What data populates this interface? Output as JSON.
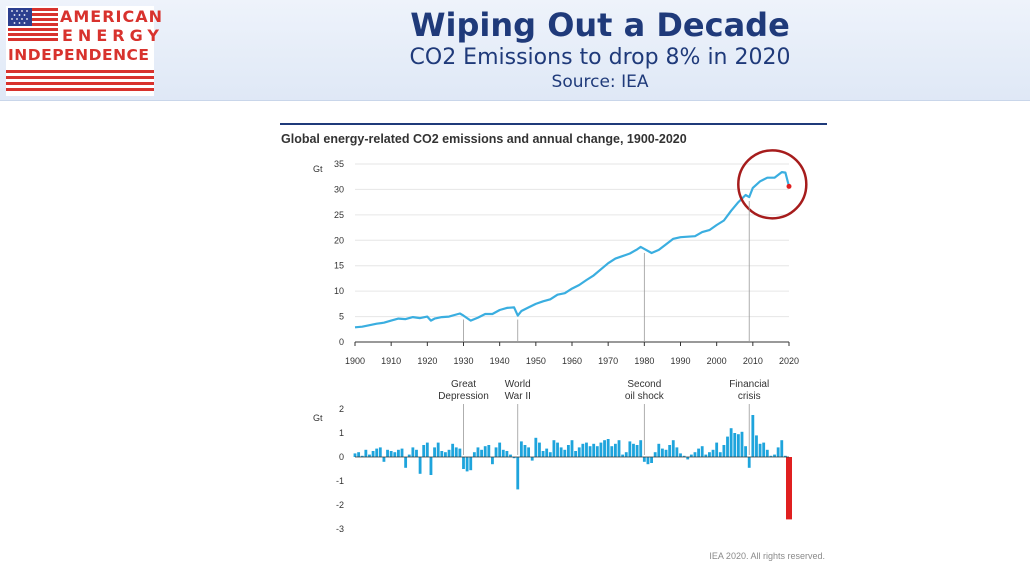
{
  "header": {
    "logo": {
      "line1": "AMERICAN",
      "line2": "ENERGY",
      "line3": "INDEPENDENCE"
    },
    "title": "Wiping Out a Decade",
    "subtitle": "CO2 Emissions to drop 8% in 2020",
    "source": "Source: IEA"
  },
  "colors": {
    "title": "#1f3a7a",
    "line": "#3aaee0",
    "bar": "#1ea4dc",
    "bar_2020": "#e02020",
    "circle": "#a61c1c",
    "logo_red": "#d8322d"
  },
  "chart_data": [
    {
      "type": "line",
      "title": "Global energy-related CO2 emissions and annual change, 1900-2020",
      "ylabel": "Gt",
      "xlim": [
        1900,
        2020
      ],
      "ylim": [
        0,
        35
      ],
      "yticks": [
        0,
        5,
        10,
        15,
        20,
        25,
        30,
        35
      ],
      "xticks": [
        1900,
        1910,
        1920,
        1930,
        1940,
        1950,
        1960,
        1970,
        1980,
        1990,
        2000,
        2010,
        2020
      ],
      "grid": true,
      "x": [
        1900,
        1902,
        1904,
        1906,
        1908,
        1910,
        1912,
        1914,
        1916,
        1918,
        1920,
        1921,
        1922,
        1924,
        1926,
        1928,
        1929,
        1930,
        1932,
        1934,
        1936,
        1938,
        1940,
        1942,
        1944,
        1945,
        1946,
        1948,
        1950,
        1952,
        1954,
        1956,
        1958,
        1960,
        1962,
        1964,
        1966,
        1968,
        1970,
        1972,
        1974,
        1976,
        1978,
        1979,
        1980,
        1982,
        1984,
        1986,
        1988,
        1990,
        1992,
        1994,
        1996,
        1998,
        2000,
        2002,
        2004,
        2006,
        2008,
        2009,
        2010,
        2012,
        2014,
        2016,
        2018,
        2019,
        2020
      ],
      "y": [
        2.9,
        3.0,
        3.3,
        3.6,
        3.8,
        4.2,
        4.6,
        4.5,
        4.9,
        4.7,
        5.0,
        4.2,
        4.6,
        4.9,
        5.0,
        5.4,
        5.6,
        5.2,
        4.2,
        4.8,
        5.5,
        5.5,
        6.3,
        6.7,
        6.8,
        5.2,
        6.1,
        6.8,
        7.5,
        8.0,
        8.4,
        9.3,
        9.6,
        10.5,
        11.2,
        12.2,
        13.1,
        14.3,
        15.5,
        16.4,
        16.9,
        17.4,
        18.2,
        18.7,
        18.3,
        17.5,
        18.1,
        19.2,
        20.3,
        20.6,
        20.7,
        20.8,
        21.6,
        22.0,
        23.0,
        23.9,
        25.8,
        27.5,
        28.9,
        28.5,
        30.3,
        31.6,
        32.3,
        32.3,
        33.4,
        33.3,
        30.6
      ],
      "highlight": {
        "x": 2020,
        "y": 30.6
      },
      "annotation_lines": [
        1930,
        1945,
        1980,
        2009
      ]
    },
    {
      "type": "bar",
      "ylabel": "Gt",
      "ylim": [
        -3,
        2
      ],
      "yticks": [
        -3,
        -2,
        -1,
        0,
        1,
        2
      ],
      "annotations": [
        {
          "year": 1930,
          "lines": [
            "Great",
            "Depression"
          ]
        },
        {
          "year": 1945,
          "lines": [
            "World",
            "War II"
          ]
        },
        {
          "year": 1980,
          "lines": [
            "Second",
            "oil shock"
          ]
        },
        {
          "year": 2009,
          "lines": [
            "Financial",
            "crisis"
          ]
        }
      ],
      "categories": [
        1900,
        1901,
        1902,
        1903,
        1904,
        1905,
        1906,
        1907,
        1908,
        1909,
        1910,
        1911,
        1912,
        1913,
        1914,
        1915,
        1916,
        1917,
        1918,
        1919,
        1920,
        1921,
        1922,
        1923,
        1924,
        1925,
        1926,
        1927,
        1928,
        1929,
        1930,
        1931,
        1932,
        1933,
        1934,
        1935,
        1936,
        1937,
        1938,
        1939,
        1940,
        1941,
        1942,
        1943,
        1944,
        1945,
        1946,
        1947,
        1948,
        1949,
        1950,
        1951,
        1952,
        1953,
        1954,
        1955,
        1956,
        1957,
        1958,
        1959,
        1960,
        1961,
        1962,
        1963,
        1964,
        1965,
        1966,
        1967,
        1968,
        1969,
        1970,
        1971,
        1972,
        1973,
        1974,
        1975,
        1976,
        1977,
        1978,
        1979,
        1980,
        1981,
        1982,
        1983,
        1984,
        1985,
        1986,
        1987,
        1988,
        1989,
        1990,
        1991,
        1992,
        1993,
        1994,
        1995,
        1996,
        1997,
        1998,
        1999,
        2000,
        2001,
        2002,
        2003,
        2004,
        2005,
        2006,
        2007,
        2008,
        2009,
        2010,
        2011,
        2012,
        2013,
        2014,
        2015,
        2016,
        2017,
        2018,
        2019,
        2020
      ],
      "values": [
        0.15,
        0.2,
        0.05,
        0.3,
        0.1,
        0.25,
        0.35,
        0.4,
        -0.2,
        0.3,
        0.25,
        0.2,
        0.3,
        0.35,
        -0.45,
        0.1,
        0.4,
        0.3,
        -0.7,
        0.5,
        0.6,
        -0.75,
        0.4,
        0.6,
        0.25,
        0.2,
        0.3,
        0.55,
        0.4,
        0.35,
        -0.5,
        -0.6,
        -0.55,
        0.2,
        0.4,
        0.3,
        0.45,
        0.5,
        -0.3,
        0.4,
        0.6,
        0.3,
        0.25,
        0.1,
        -0.05,
        -1.35,
        0.65,
        0.5,
        0.4,
        -0.15,
        0.8,
        0.6,
        0.25,
        0.35,
        0.2,
        0.7,
        0.6,
        0.4,
        0.3,
        0.5,
        0.7,
        0.25,
        0.4,
        0.55,
        0.6,
        0.45,
        0.55,
        0.45,
        0.6,
        0.7,
        0.75,
        0.45,
        0.55,
        0.7,
        0.1,
        0.2,
        0.65,
        0.55,
        0.5,
        0.7,
        -0.2,
        -0.3,
        -0.25,
        0.2,
        0.55,
        0.35,
        0.3,
        0.5,
        0.7,
        0.4,
        0.15,
        0.05,
        -0.1,
        0.1,
        0.2,
        0.35,
        0.45,
        0.1,
        0.2,
        0.3,
        0.6,
        0.2,
        0.5,
        0.85,
        1.2,
        1.0,
        0.95,
        1.05,
        0.45,
        -0.45,
        1.75,
        0.9,
        0.55,
        0.6,
        0.3,
        0.05,
        0.1,
        0.4,
        0.7,
        0.05,
        -2.6
      ]
    }
  ],
  "footer": {
    "credit": "IEA 2020. All rights reserved."
  }
}
